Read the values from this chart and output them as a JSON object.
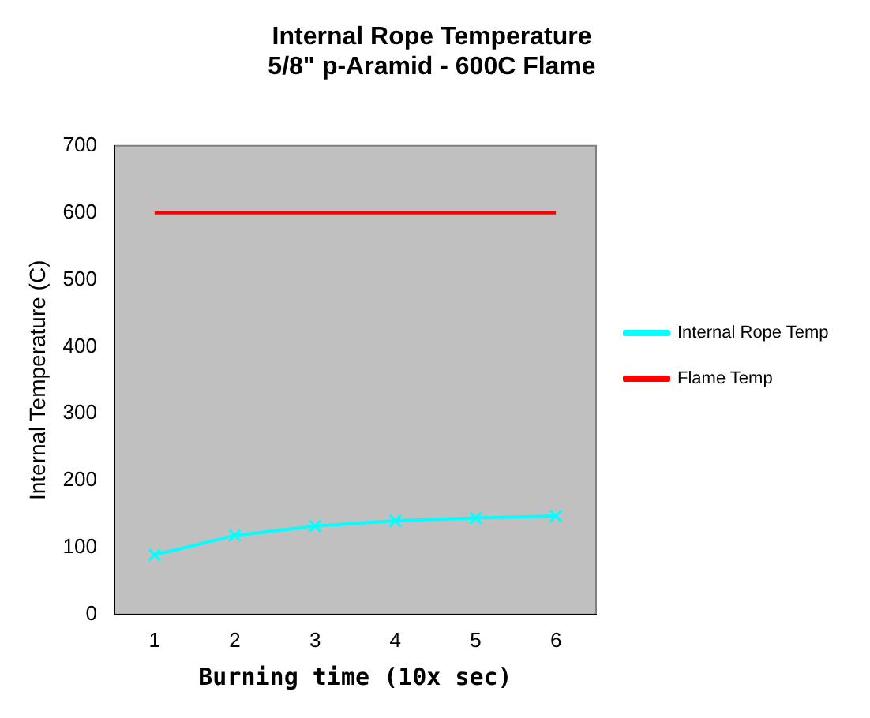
{
  "chart_data": {
    "type": "line",
    "title": [
      "Internal Rope Temperature",
      "5/8\" p-Aramid - 600C Flame"
    ],
    "xlabel": "Burning time (10x sec)",
    "ylabel": "Internal Temperature (C)",
    "categories": [
      "1",
      "2",
      "3",
      "4",
      "5",
      "6"
    ],
    "ylim": [
      0,
      700
    ],
    "yticks": [
      0,
      100,
      200,
      300,
      400,
      500,
      600,
      700
    ],
    "grid": false,
    "legend": "right",
    "series": [
      {
        "name": "Internal Rope Temp",
        "color": "#00ffff",
        "marker": "cross",
        "values": [
          89,
          118,
          132,
          140,
          144,
          147
        ]
      },
      {
        "name": "Flame Temp",
        "color": "#ff0000",
        "marker": "none",
        "values": [
          600,
          600,
          600,
          600,
          600,
          600
        ]
      }
    ]
  }
}
